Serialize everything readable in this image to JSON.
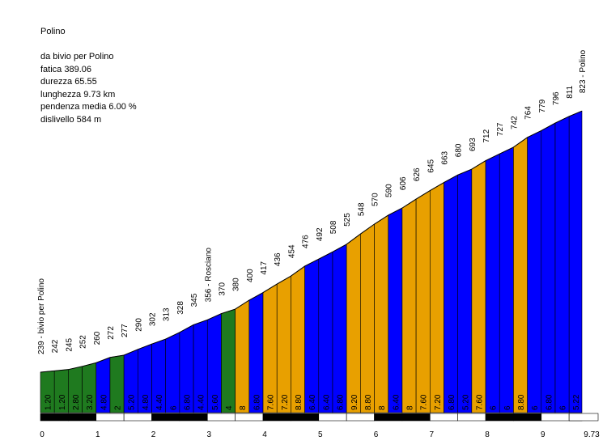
{
  "info": {
    "title": "Polino",
    "start": "da bivio per Polino",
    "fatica": "fatica 389.06",
    "durezza": "durezza 65.55",
    "lunghezza": "lunghezza 9.73 km",
    "pendenza": "pendenza media 6.00 %",
    "dislivello": "dislivello 584 m"
  },
  "colors": {
    "green": "#1f7a1f",
    "blue": "#0000ff",
    "orange": "#e8a000",
    "outline": "#000000"
  },
  "chart_data": {
    "type": "area",
    "title": "Polino",
    "x_unit": "km",
    "xlim": [
      0,
      9.73
    ],
    "x_ticks": [
      "0",
      "1",
      "2",
      "3",
      "4",
      "5",
      "6",
      "7",
      "8",
      "9",
      "9.73"
    ],
    "x": [
      0,
      0.25,
      0.5,
      0.75,
      1,
      1.25,
      1.5,
      1.75,
      2,
      2.25,
      2.5,
      2.75,
      3,
      3.25,
      3.5,
      3.75,
      4,
      4.25,
      4.5,
      4.75,
      5,
      5.25,
      5.5,
      5.75,
      6,
      6.25,
      6.5,
      6.75,
      7,
      7.25,
      7.5,
      7.75,
      8,
      8.25,
      8.5,
      8.75,
      9,
      9.25,
      9.5,
      9.73
    ],
    "elevation": [
      239,
      242,
      245,
      252,
      260,
      272,
      277,
      290,
      302,
      313,
      328,
      345,
      356,
      370,
      380,
      400,
      417,
      436,
      454,
      476,
      492,
      508,
      525,
      548,
      570,
      590,
      606,
      626,
      645,
      663,
      680,
      693,
      712,
      727,
      742,
      764,
      779,
      796,
      811,
      823
    ],
    "elevation_labels": [
      "239 - bivio per Polino",
      "242",
      "245",
      "252",
      "260",
      "272",
      "277",
      "290",
      "302",
      "313",
      "328",
      "345",
      "356 - Rosciano",
      "370",
      "380",
      "400",
      "417",
      "436",
      "454",
      "476",
      "492",
      "508",
      "525",
      "548",
      "570",
      "590",
      "606",
      "626",
      "645",
      "663",
      "680",
      "693",
      "712",
      "727",
      "742",
      "764",
      "779",
      "796",
      "811",
      "823 - Polino"
    ],
    "gradients": [
      "1.20",
      "1.20",
      "2.80",
      "3.20",
      "4.80",
      "2",
      "5.20",
      "4.80",
      "4.40",
      "6",
      "6.80",
      "4.40",
      "5.60",
      "4",
      "8",
      "6.80",
      "7.60",
      "7.20",
      "8.80",
      "6.40",
      "6.40",
      "6.80",
      "9.20",
      "8.80",
      "8",
      "6.40",
      "8",
      "7.60",
      "7.20",
      "6.80",
      "5.20",
      "7.60",
      "6",
      "6",
      "8.80",
      "6",
      "6.80",
      "6",
      "5.22"
    ],
    "segment_colors": [
      "green",
      "green",
      "green",
      "green",
      "blue",
      "green",
      "blue",
      "blue",
      "blue",
      "blue",
      "blue",
      "blue",
      "blue",
      "green",
      "orange",
      "blue",
      "orange",
      "orange",
      "orange",
      "blue",
      "blue",
      "blue",
      "orange",
      "orange",
      "orange",
      "blue",
      "orange",
      "orange",
      "orange",
      "blue",
      "blue",
      "orange",
      "blue",
      "blue",
      "orange",
      "blue",
      "blue",
      "blue",
      "blue"
    ],
    "ylim": [
      180,
      900
    ]
  }
}
